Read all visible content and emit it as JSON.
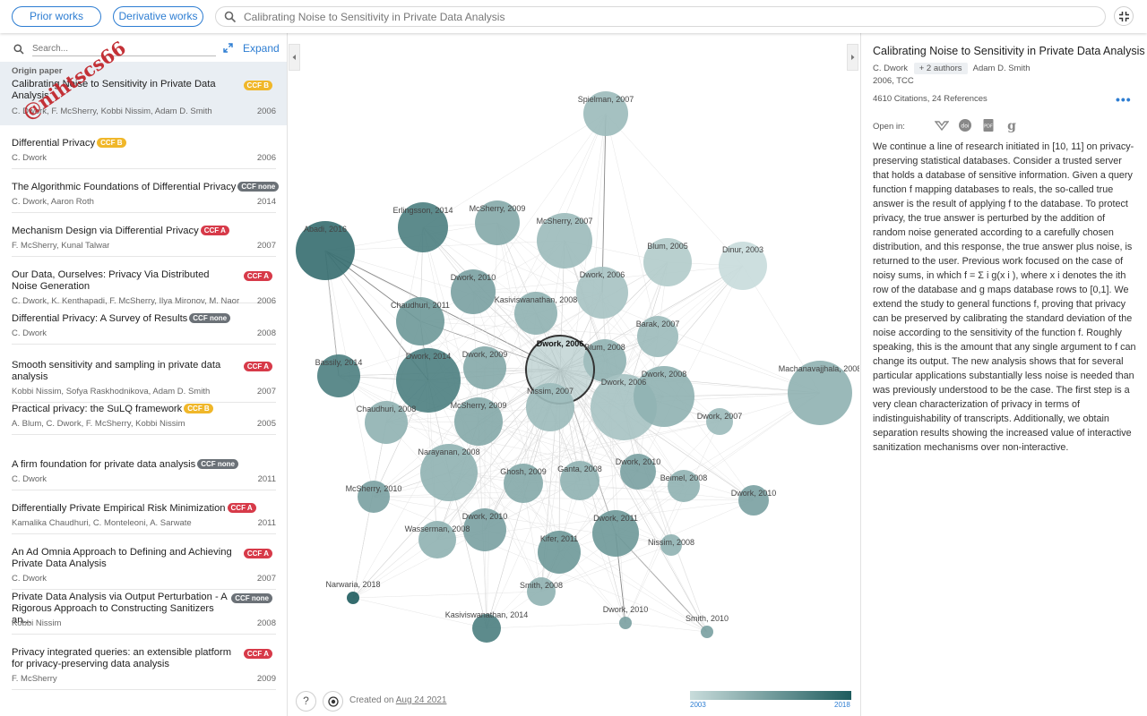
{
  "topbar": {
    "prior_works": "Prior works",
    "derivative_works": "Derivative works",
    "search_query": "Calibrating Noise to Sensitivity in Private Data Analysis"
  },
  "left": {
    "search_placeholder": "Search...",
    "expand_label": "Expand",
    "origin_label": "Origin paper",
    "origin": {
      "title": "Calibrating Noise to Sensitivity in Private Data Analysis",
      "ccf": "CCF B",
      "authors": "C. Dwork, F. McSherry, Kobbi Nissim, Adam D. Smith",
      "year": "2006"
    },
    "items": [
      {
        "title": "Differential Privacy",
        "ccf": "CCF B",
        "authors": "C. Dwork",
        "year": "2006"
      },
      {
        "title": "The Algorithmic Foundations of Differential Privacy",
        "ccf": "CCF none",
        "authors": "C. Dwork, Aaron Roth",
        "year": "2014"
      },
      {
        "title": "Mechanism Design via Differential Privacy",
        "ccf": "CCF A",
        "authors": "F. McSherry, Kunal Talwar",
        "year": "2007"
      },
      {
        "title": "Our Data, Ourselves: Privacy Via Distributed Noise Generation",
        "ccf": "CCF A",
        "authors": "C. Dwork, K. Kenthapadi, F. McSherry, Ilya Mironov, M. Naor",
        "year": "2006"
      },
      {
        "title": "Differential Privacy: A Survey of Results",
        "ccf": "CCF none",
        "authors": "C. Dwork",
        "year": "2008"
      },
      {
        "title": "Smooth sensitivity and sampling in private data analysis",
        "ccf": "CCF A",
        "authors": "Kobbi Nissim, Sofya Raskhodnikova, Adam D. Smith",
        "year": "2007"
      },
      {
        "title": "Practical privacy: the SuLQ framework",
        "ccf": "CCF B",
        "authors": "A. Blum, C. Dwork, F. McSherry, Kobbi Nissim",
        "year": "2005"
      },
      {
        "title": "A firm foundation for private data analysis",
        "ccf": "CCF none",
        "authors": "C. Dwork",
        "year": "2011"
      },
      {
        "title": "Differentially Private Empirical Risk Minimization",
        "ccf": "CCF A",
        "authors": "Kamalika Chaudhuri, C. Monteleoni, A. Sarwate",
        "year": "2011"
      },
      {
        "title": "An Ad Omnia Approach to Defining and Achieving Private Data Analysis",
        "ccf": "CCF A",
        "authors": "C. Dwork",
        "year": "2007"
      },
      {
        "title": "Private Data Analysis via Output Perturbation - A Rigorous Approach to Constructing Sanitizers an...",
        "ccf": "CCF none",
        "authors": "Kobbi Nissim",
        "year": "2008"
      },
      {
        "title": "Privacy integrated queries: an extensible platform for privacy-preserving data analysis",
        "ccf": "CCF A",
        "authors": "F. McSherry",
        "year": "2009"
      }
    ]
  },
  "graph": {
    "created_label": "Created on",
    "created_date": "Aug 24 2021",
    "help_label": "?",
    "legend_start": "2003",
    "legend_end": "2018",
    "nodes": [
      {
        "label": "Spielman, 2007",
        "year": 2007
      },
      {
        "label": "Erlingsson, 2014",
        "year": 2014
      },
      {
        "label": "McSherry, 2009",
        "year": 2009
      },
      {
        "label": "Abadi, 2016",
        "year": 2016
      },
      {
        "label": "McSherry, 2007",
        "year": 2007
      },
      {
        "label": "Blum, 2005",
        "year": 2005
      },
      {
        "label": "Dinur, 2003",
        "year": 2003
      },
      {
        "label": "Dwork, 2010",
        "year": 2010
      },
      {
        "label": "Dwork, 2006",
        "year": 2006
      },
      {
        "label": "Kasiviswanathan, 2008",
        "year": 2008
      },
      {
        "label": "Chaudhuri, 2011",
        "year": 2011
      },
      {
        "label": "Barak, 2007",
        "year": 2007
      },
      {
        "label": "Blum, 2008",
        "year": 2008
      },
      {
        "label": "Dwork, 2006",
        "year": 2006
      },
      {
        "label": "Bassily, 2014",
        "year": 2014
      },
      {
        "label": "Dwork, 2014",
        "year": 2014
      },
      {
        "label": "Dwork, 2009",
        "year": 2009
      },
      {
        "label": "Machanavajjhala, 2008",
        "year": 2008
      },
      {
        "label": "Nissim, 2007",
        "year": 2007
      },
      {
        "label": "Dwork, 2006",
        "year": 2006
      },
      {
        "label": "Dwork, 2008",
        "year": 2008
      },
      {
        "label": "Chaudhuri, 2008",
        "year": 2008
      },
      {
        "label": "McSherry, 2009",
        "year": 2009
      },
      {
        "label": "Dwork, 2007",
        "year": 2007
      },
      {
        "label": "Narayanan, 2008",
        "year": 2008
      },
      {
        "label": "Ghosh, 2009",
        "year": 2009
      },
      {
        "label": "Ganta, 2008",
        "year": 2008
      },
      {
        "label": "Dwork, 2010",
        "year": 2010
      },
      {
        "label": "Beimel, 2008",
        "year": 2008
      },
      {
        "label": "McSherry, 2010",
        "year": 2010
      },
      {
        "label": "Dwork, 2010",
        "year": 2010
      },
      {
        "label": "Wasserman, 2008",
        "year": 2008
      },
      {
        "label": "Dwork, 2010",
        "year": 2010
      },
      {
        "label": "Kifer, 2011",
        "year": 2011
      },
      {
        "label": "Dwork, 2011",
        "year": 2011
      },
      {
        "label": "Nissim, 2008",
        "year": 2008
      },
      {
        "label": "Smith, 2008",
        "year": 2008
      },
      {
        "label": "Narwaria, 2018",
        "year": 2018
      },
      {
        "label": "Kasiviswanathan, 2014",
        "year": 2014
      },
      {
        "label": "Dwork, 2010",
        "year": 2010
      },
      {
        "label": "Smith, 2010",
        "year": 2010
      }
    ]
  },
  "right": {
    "title": "Calibrating Noise to Sensitivity in Private Data Analysis",
    "author_first": "C. Dwork",
    "more_authors": "+ 2 authors",
    "author_last": "Adam D. Smith",
    "venue": "2006, TCC",
    "citations": "4610 Citations, 24 References",
    "open_in": "Open in:",
    "abstract": "We continue a line of research initiated in [10, 11] on privacy-preserving statistical databases. Consider a trusted server that holds a database of sensitive information. Given a query function f mapping databases to reals, the so-called true answer is the result of applying f to the database. To protect privacy, the true answer is perturbed by the addition of random noise generated according to a carefully chosen distribution, and this response, the true answer plus noise, is returned to the user. Previous work focused on the case of noisy sums, in which f = Σ i g(x i ), where x i denotes the ith row of the database and g maps database rows to [0,1]. We extend the study to general functions f, proving that privacy can be preserved by calibrating the standard deviation of the noise according to the sensitivity of the function f. Roughly speaking, this is the amount that any single argument to f can change its output. The new analysis shows that for several particular applications substantially less noise is needed than was previously understood to be the case. The first step is a very clean characterization of privacy in terms of indistinguishability of transcripts. Additionally, we obtain separation results showing the increased value of interactive sanitization mechanisms over non-interactive."
  },
  "watermark": "@nihtscs66",
  "colors": {
    "accent": "#2d7dd2",
    "ccf_a": "#d73a49",
    "ccf_b": "#f0b72a",
    "ccf_none": "#6b7177",
    "node_old": "#c8dcdb",
    "node_new": "#1e5c5e"
  }
}
